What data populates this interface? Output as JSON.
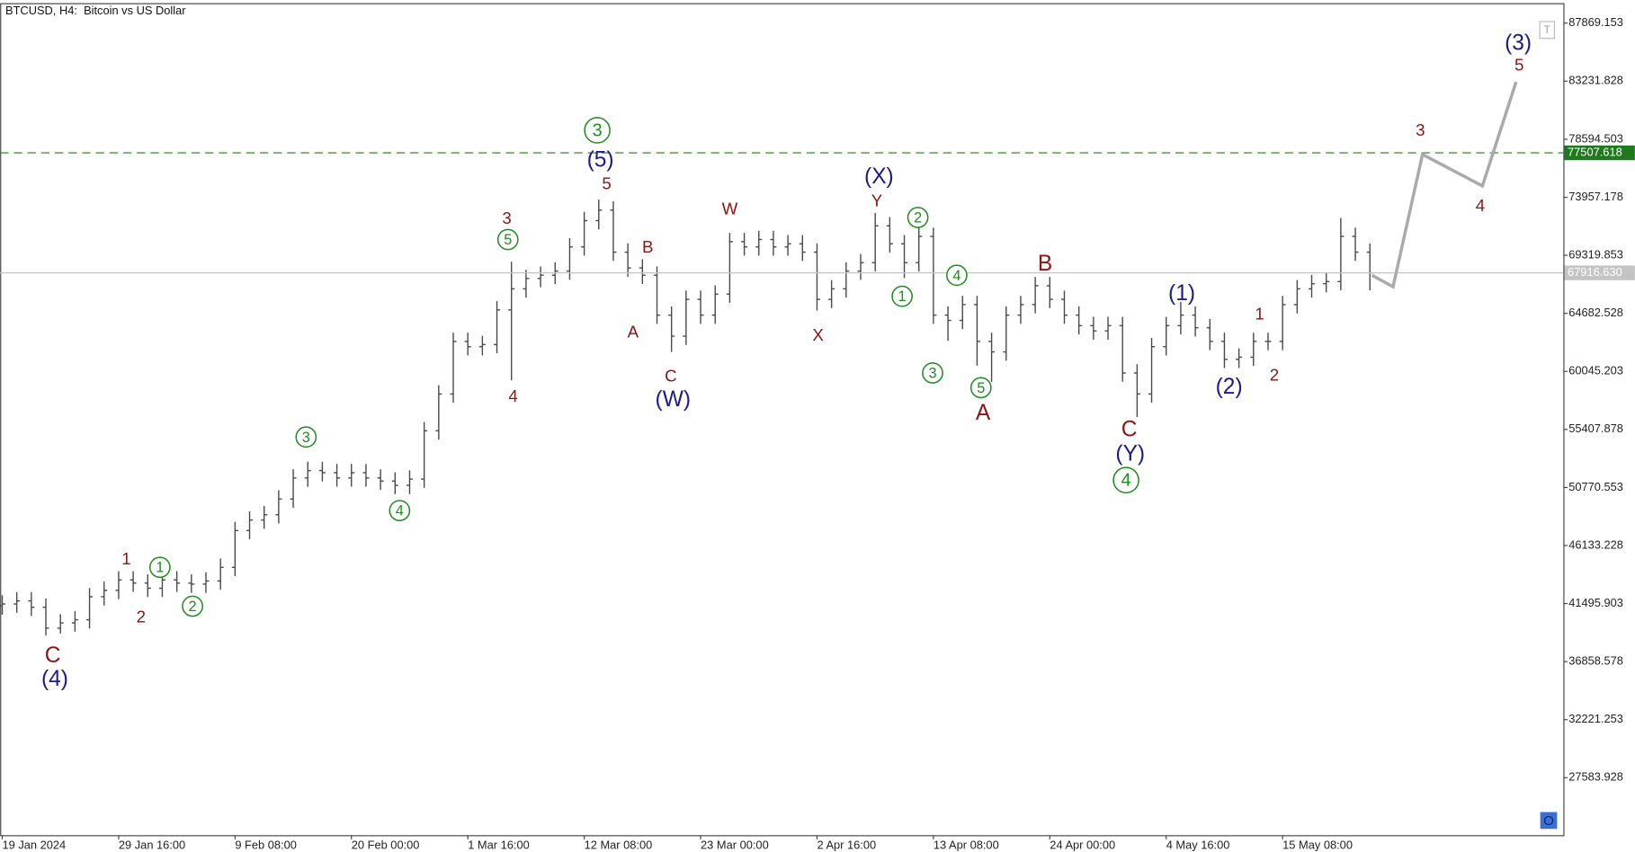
{
  "chart_data": {
    "type": "ohlc",
    "title": "BTCUSD, H4:  Bitcoin vs US Dollar",
    "categories": [
      "19 Jan 2024",
      null,
      null,
      null,
      null,
      null,
      null,
      null,
      "29 Jan 16:00",
      null,
      null,
      null,
      null,
      null,
      null,
      null,
      "9 Feb 08:00",
      null,
      null,
      null,
      null,
      null,
      null,
      null,
      "20 Feb 00:00",
      null,
      null,
      null,
      null,
      null,
      null,
      null,
      "1 Mar 16:00",
      null,
      null,
      null,
      null,
      null,
      null,
      null,
      "12 Mar 08:00",
      null,
      null,
      null,
      null,
      null,
      null,
      null,
      "23 Mar 00:00",
      null,
      null,
      null,
      null,
      null,
      null,
      null,
      "2 Apr 16:00",
      null,
      null,
      null,
      null,
      null,
      null,
      null,
      "13 Apr 08:00",
      null,
      null,
      null,
      null,
      null,
      null,
      null,
      "24 Apr 00:00",
      null,
      null,
      null,
      null,
      null,
      null,
      null,
      "4 May 16:00",
      null,
      null,
      null,
      null,
      null,
      null,
      null,
      "15 May 08:00",
      null,
      null,
      null,
      null,
      null,
      null
    ],
    "open": [
      41300,
      41460,
      41710,
      41200,
      39530,
      39950,
      40200,
      42040,
      42550,
      43390,
      43130,
      42720,
      43390,
      43130,
      43050,
      43300,
      44390,
      47330,
      48170,
      48590,
      49850,
      51530,
      52120,
      51950,
      51530,
      51950,
      51530,
      51280,
      50940,
      51440,
      55300,
      58240,
      62440,
      62020,
      62190,
      64960,
      66640,
      67470,
      67730,
      68060,
      69990,
      72090,
      72930,
      69570,
      68310,
      67730,
      64540,
      62860,
      65800,
      64540,
      66220,
      70410,
      69990,
      70580,
      69990,
      70240,
      69570,
      65800,
      66640,
      68060,
      68730,
      71670,
      70240,
      68730,
      70830,
      64540,
      64120,
      65380,
      62440,
      61600,
      64540,
      65380,
      66890,
      65800,
      64540,
      63700,
      63280,
      63700,
      59920,
      58240,
      62020,
      63700,
      64540,
      63530,
      62440,
      61010,
      61180,
      62440,
      62440,
      65380,
      66640,
      67050,
      67220,
      70830,
      69570
    ],
    "high": [
      42160,
      42410,
      42410,
      41900,
      40650,
      40900,
      42740,
      43250,
      44090,
      44090,
      43830,
      44090,
      44090,
      43830,
      44000,
      45090,
      48030,
      48870,
      49290,
      50550,
      52230,
      52820,
      52820,
      52650,
      52650,
      52650,
      52230,
      51980,
      52140,
      56000,
      58940,
      63140,
      63140,
      62890,
      65660,
      68800,
      68170,
      68430,
      68760,
      70690,
      72790,
      73770,
      73630,
      70270,
      69010,
      68430,
      65240,
      66500,
      66500,
      66920,
      71110,
      71110,
      71280,
      71280,
      70940,
      70940,
      70270,
      67340,
      68760,
      69430,
      72700,
      72370,
      70940,
      71530,
      71530,
      65240,
      66080,
      66080,
      63140,
      65240,
      66080,
      67590,
      67590,
      66500,
      65240,
      64400,
      64400,
      64400,
      60620,
      62720,
      64400,
      65600,
      65240,
      64230,
      63140,
      61880,
      63140,
      63140,
      66080,
      67340,
      67750,
      67920,
      72300,
      71530,
      70270
    ],
    "low": [
      40600,
      40760,
      40500,
      38940,
      39100,
      39250,
      39500,
      41340,
      41850,
      42430,
      42020,
      42020,
      42430,
      42350,
      42350,
      42600,
      43690,
      46630,
      47470,
      47890,
      49150,
      50830,
      51250,
      50830,
      50830,
      50830,
      50580,
      50240,
      50240,
      50740,
      54600,
      57540,
      61320,
      61320,
      61490,
      59330,
      65940,
      66770,
      67030,
      67360,
      69290,
      71390,
      68870,
      67610,
      67030,
      63840,
      61600,
      62160,
      63840,
      63840,
      65520,
      69290,
      69290,
      69290,
      69290,
      68870,
      64900,
      65100,
      65940,
      67360,
      68030,
      69540,
      67500,
      68030,
      63840,
      62500,
      63420,
      60500,
      59200,
      60900,
      63840,
      64680,
      65100,
      63840,
      63000,
      62580,
      62580,
      59220,
      56400,
      57540,
      61320,
      63000,
      62830,
      61740,
      60310,
      60310,
      60480,
      61740,
      61740,
      64680,
      65940,
      66350,
      66520,
      68870,
      66520
    ],
    "close": [
      41460,
      41710,
      41200,
      39530,
      39950,
      40200,
      42040,
      42550,
      43390,
      43130,
      42720,
      43390,
      43130,
      43050,
      43300,
      44390,
      47330,
      48170,
      48590,
      49850,
      51530,
      52120,
      51950,
      51530,
      51950,
      51530,
      51280,
      50940,
      51440,
      55300,
      58240,
      62440,
      62020,
      62190,
      64960,
      66640,
      67470,
      67730,
      68060,
      69990,
      72090,
      72930,
      69570,
      68310,
      67730,
      64540,
      62860,
      65800,
      64540,
      66220,
      70410,
      69990,
      70580,
      69990,
      70240,
      69570,
      65800,
      66640,
      68060,
      68730,
      71670,
      70240,
      68730,
      70830,
      64540,
      64120,
      65380,
      62440,
      61600,
      64540,
      65380,
      66890,
      65800,
      64540,
      63700,
      63280,
      63700,
      59920,
      58240,
      62020,
      63700,
      64540,
      63530,
      62440,
      61010,
      61180,
      62440,
      62440,
      65380,
      66640,
      67050,
      67220,
      70830,
      69570,
      67916.63
    ],
    "color": "#4a4a4a",
    "ylim": [
      22990,
      89465
    ],
    "yticks": [
      87869.153,
      83231.828,
      78594.503,
      73957.178,
      69319.853,
      64682.528,
      60045.203,
      55407.878,
      50770.553,
      46133.228,
      41495.903,
      36858.578,
      32221.253,
      27583.928
    ],
    "level": 77507.618,
    "level_color": "#1f7a1f",
    "last_price": {
      "value": 67916.63,
      "label": "67916.630"
    },
    "last_price_color": "#c4c4c4",
    "wave_labels": [
      "C",
      "(4)",
      "1",
      "2",
      "1",
      "2",
      "3",
      "4",
      "3",
      "5",
      "4",
      "3",
      "(5)",
      "5",
      "B",
      "A",
      "C",
      "(W)",
      "W",
      "X",
      "(X)",
      "Y",
      "2",
      "1",
      "4",
      "3",
      "5",
      "A",
      "B",
      "C",
      "(Y)",
      "4",
      "(1)",
      "(2)",
      "1",
      "2",
      "3",
      "4",
      "(3)",
      "5"
    ]
  },
  "toolbar_icons": [
    "T",
    "O"
  ]
}
